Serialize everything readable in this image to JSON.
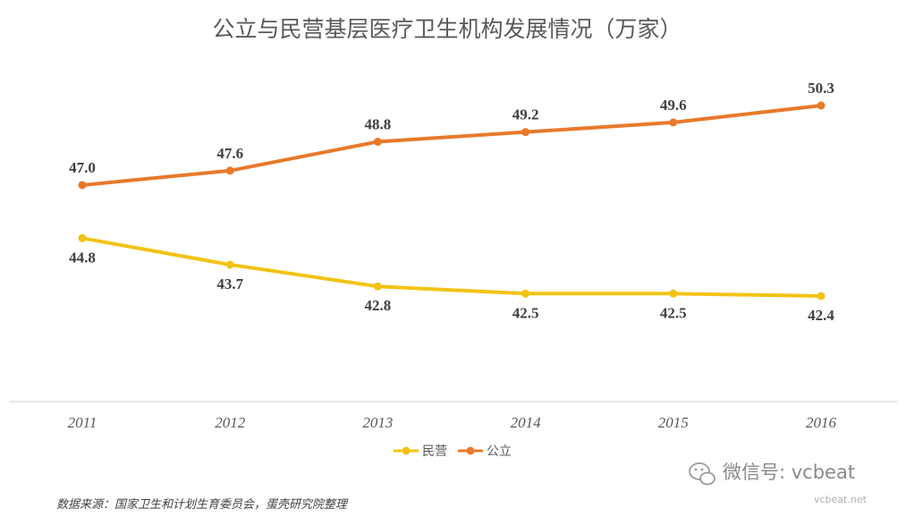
{
  "chart_data": {
    "type": "line",
    "title": "公立与民营基层医疗卫生机构发展情况（万家）",
    "categories": [
      "2011",
      "2012",
      "2013",
      "2014",
      "2015",
      "2016"
    ],
    "series": [
      {
        "name": "民营",
        "color": "#f2c314",
        "values": [
          44.8,
          43.7,
          42.8,
          42.5,
          42.5,
          42.4
        ],
        "labels": [
          "44.8",
          "43.7",
          "42.8",
          "42.5",
          "42.5",
          "42.4"
        ]
      },
      {
        "name": "公立",
        "color": "#e8792b",
        "values": [
          47.0,
          47.6,
          48.8,
          49.2,
          49.6,
          50.3
        ],
        "labels": [
          "47.0",
          "47.6",
          "48.8",
          "49.2",
          "49.6",
          "50.3"
        ]
      }
    ],
    "legend_position": "bottom-center",
    "grid": false
  },
  "footer": {
    "source": "数据来源：国家卫生和计划生育委员会，蛋壳研究院整理"
  },
  "watermark": {
    "text": "微信号: vcbeat",
    "url": "vcbeat.net",
    "icon": "wechat-icon"
  }
}
